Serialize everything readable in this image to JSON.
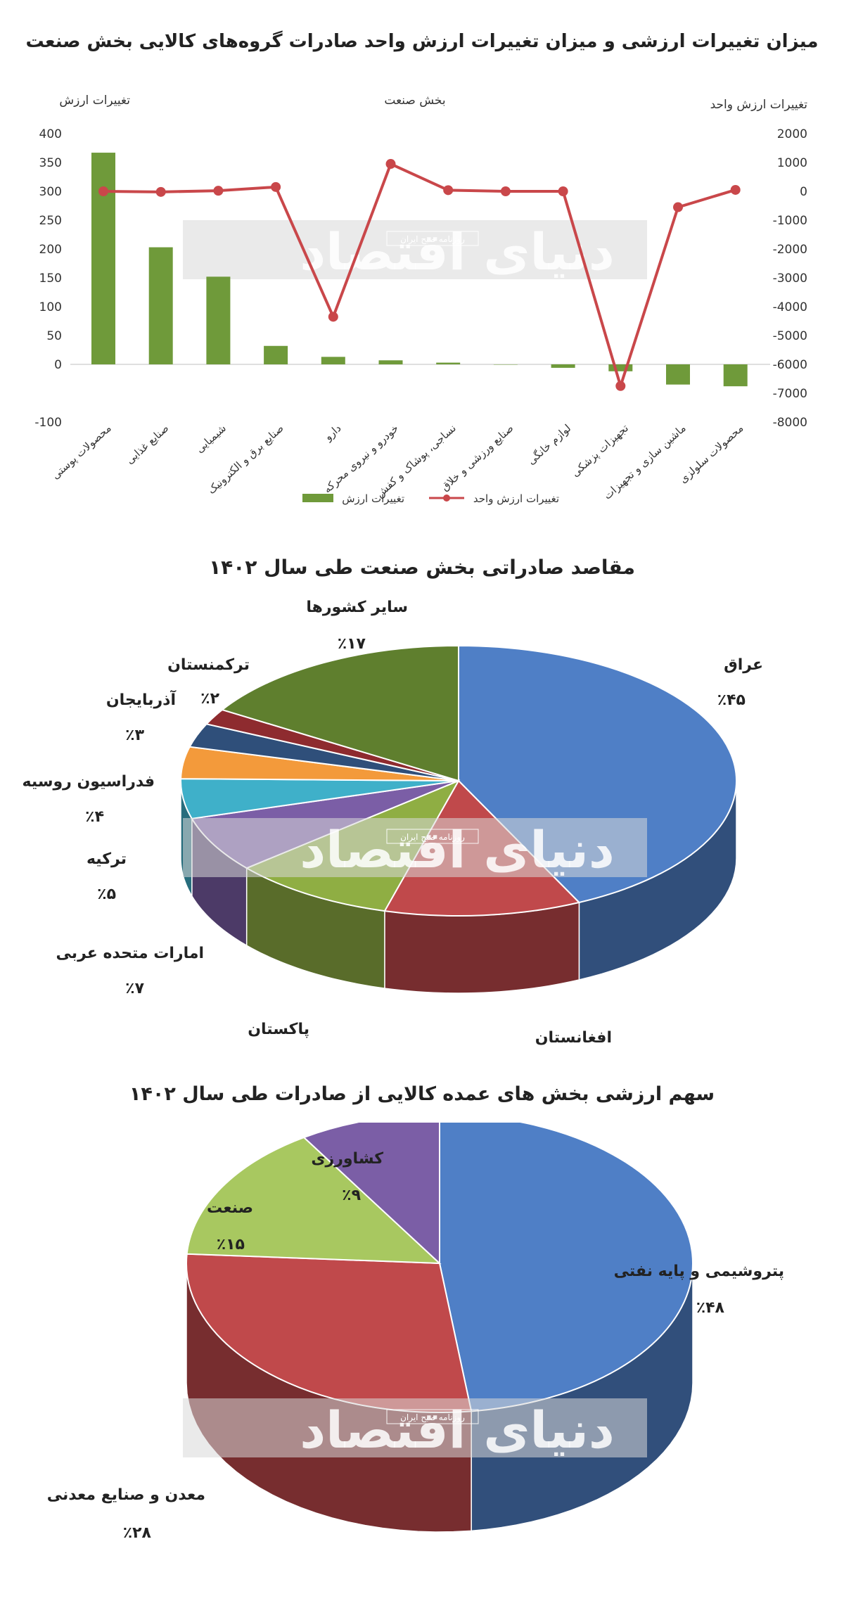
{
  "chart_data": [
    {
      "type": "bar",
      "title": "میزان تغییرات ارزشی و میزان تغییرات ارزش واحد صادرات گروه‌های کالایی بخش صنعت",
      "xlabel": "بخش صنعت",
      "ylabel": "تغییرات ارزش",
      "y2label": "تغییرات ارزش واحد",
      "ylim": [
        -100,
        400
      ],
      "yticks": [
        "-100",
        "0",
        "50",
        "100",
        "150",
        "200",
        "250",
        "300",
        "350",
        "400"
      ],
      "y2lim": [
        -8000,
        2000
      ],
      "y2ticks": [
        "-8000",
        "-7000",
        "-6000",
        "-5000",
        "-4000",
        "-3000",
        "-2000",
        "-1000",
        "0",
        "1000",
        "2000"
      ],
      "categories": [
        "محصولات پوستی",
        "صنایع غذایی",
        "شیمیایی",
        "صنایع برق و الکترونیک",
        "دارو",
        "خودرو و نیروی محرکه",
        "نساجی، پوشاک و کفش",
        "صنایع ورزشی و خلاق",
        "لوازم خانگی",
        "تجهیزات پزشکی",
        "ماشین سازی و تجهیزات",
        "محصولات سلولزی"
      ],
      "series": [
        {
          "name": "تغییرات ارزش",
          "type": "bar",
          "axis": "left",
          "color": "#6f9a3a",
          "values": [
            367,
            203,
            152,
            32,
            13,
            7,
            3,
            0,
            -6,
            -12,
            -35,
            -38
          ]
        },
        {
          "name": "تغییرات ارزش واحد",
          "type": "line",
          "axis": "right",
          "color": "#c9474a",
          "values": [
            0,
            -20,
            20,
            150,
            -4350,
            950,
            40,
            0,
            0,
            -6750,
            -550,
            50
          ]
        }
      ],
      "legend": "bottom",
      "grid": false
    },
    {
      "type": "pie",
      "title": "مقاصد صادراتی بخش صنعت طی سال ۱۴۰۲",
      "labels": [
        "عراق",
        "افغانستان",
        "پاکستان",
        "امارات متحده عربی",
        "ترکیه",
        "فدراسیون روسیه",
        "آذربایجان",
        "ترکمنستان",
        "سایر کشورها"
      ],
      "values": [
        45,
        12,
        10,
        7,
        5,
        4,
        3,
        2,
        17
      ],
      "value_labels": [
        "٪۴۵",
        "",
        "",
        "٪۷",
        "٪۵",
        "٪۴",
        "٪۳",
        "٪۲",
        "٪۱۷"
      ],
      "colors": [
        "#4f7fc6",
        "#c0494b",
        "#8fae43",
        "#7b5ea6",
        "#3fb0c9",
        "#f39a3b",
        "#2f4f7a",
        "#8e2b2f",
        "#5f7f2e"
      ]
    },
    {
      "type": "pie",
      "title": "سهم ارزشی بخش های عمده کالایی از صادرات طی سال ۱۴۰۲",
      "labels": [
        "پتروشیمی و پایه نفتی",
        "معدن و صنایع معدنی",
        "صنعت",
        "کشاورزی"
      ],
      "values": [
        48,
        28,
        15,
        9
      ],
      "value_labels": [
        "٪۴۸",
        "٪۲۸",
        "٪۱۵",
        "٪۹"
      ],
      "colors": [
        "#4f7fc6",
        "#c0494b",
        "#a8c860",
        "#7b5ea6"
      ]
    }
  ],
  "watermark": {
    "brand": "دنیای اقتصاد",
    "sub": "روزنامه صبح ایران"
  }
}
